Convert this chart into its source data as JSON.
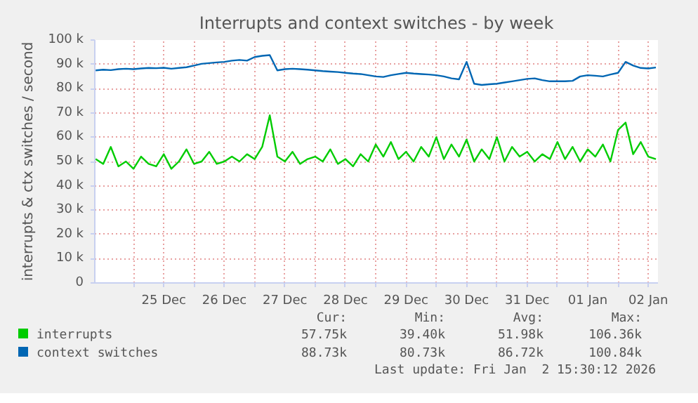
{
  "chart_data": {
    "type": "line",
    "title": "Interrupts and context switches - by week",
    "ylabel": "interrupts & ctx switches / second",
    "x": [
      "2025-12-24T09:00",
      "2025-12-24T12:00",
      "2025-12-24T15:00",
      "2025-12-24T18:00",
      "2025-12-24T21:00",
      "2025-12-25T00:00",
      "2025-12-25T03:00",
      "2025-12-25T06:00",
      "2025-12-25T09:00",
      "2025-12-25T12:00",
      "2025-12-25T15:00",
      "2025-12-25T18:00",
      "2025-12-25T21:00",
      "2025-12-26T00:00",
      "2025-12-26T03:00",
      "2025-12-26T06:00",
      "2025-12-26T09:00",
      "2025-12-26T12:00",
      "2025-12-26T15:00",
      "2025-12-26T18:00",
      "2025-12-26T21:00",
      "2025-12-27T00:00",
      "2025-12-27T03:00",
      "2025-12-27T06:00",
      "2025-12-27T09:00",
      "2025-12-27T12:00",
      "2025-12-27T15:00",
      "2025-12-27T18:00",
      "2025-12-27T21:00",
      "2025-12-28T00:00",
      "2025-12-28T03:00",
      "2025-12-28T06:00",
      "2025-12-28T09:00",
      "2025-12-28T12:00",
      "2025-12-28T15:00",
      "2025-12-28T18:00",
      "2025-12-28T21:00",
      "2025-12-29T00:00",
      "2025-12-29T03:00",
      "2025-12-29T06:00",
      "2025-12-29T09:00",
      "2025-12-29T12:00",
      "2025-12-29T15:00",
      "2025-12-29T18:00",
      "2025-12-29T21:00",
      "2025-12-30T00:00",
      "2025-12-30T03:00",
      "2025-12-30T06:00",
      "2025-12-30T09:00",
      "2025-12-30T12:00",
      "2025-12-30T15:00",
      "2025-12-30T18:00",
      "2025-12-30T21:00",
      "2025-12-31T00:00",
      "2025-12-31T03:00",
      "2025-12-31T06:00",
      "2025-12-31T09:00",
      "2025-12-31T12:00",
      "2025-12-31T15:00",
      "2025-12-31T18:00",
      "2025-12-31T21:00",
      "2026-01-01T00:00",
      "2026-01-01T03:00",
      "2026-01-01T06:00",
      "2026-01-01T09:00",
      "2026-01-01T12:00",
      "2026-01-01T15:00",
      "2026-01-01T18:00",
      "2026-01-01T21:00",
      "2026-01-02T00:00",
      "2026-01-02T03:00",
      "2026-01-02T06:00",
      "2026-01-02T09:00",
      "2026-01-02T12:00",
      "2026-01-02T15:00"
    ],
    "series": [
      {
        "name": "interrupts",
        "color": "#00cc00",
        "values": [
          51000,
          49000,
          56000,
          48000,
          50000,
          47000,
          52000,
          49000,
          48000,
          53000,
          47000,
          50000,
          55000,
          49000,
          50000,
          54000,
          49000,
          50000,
          52000,
          50000,
          53000,
          51000,
          56000,
          69000,
          52000,
          50000,
          54000,
          49000,
          51000,
          52000,
          50000,
          55000,
          49000,
          51000,
          48000,
          53000,
          50000,
          57000,
          52000,
          58000,
          51000,
          54000,
          50000,
          56000,
          52000,
          60000,
          51000,
          57000,
          52000,
          59000,
          50000,
          55000,
          51000,
          60000,
          50000,
          56000,
          52000,
          54000,
          50000,
          53000,
          51000,
          58000,
          51000,
          56000,
          50000,
          55000,
          52000,
          57000,
          50000,
          63000,
          66000,
          53000,
          58000,
          52000,
          51000
        ]
      },
      {
        "name": "context switches",
        "color": "#0066b3",
        "values": [
          87500,
          87800,
          87600,
          88000,
          88200,
          88000,
          88300,
          88500,
          88400,
          88600,
          88200,
          88500,
          88800,
          89500,
          90200,
          90500,
          90800,
          91000,
          91500,
          91800,
          91500,
          93000,
          93500,
          93800,
          87500,
          88000,
          88200,
          88000,
          87800,
          87500,
          87200,
          87000,
          86800,
          86500,
          86200,
          86000,
          85500,
          85000,
          84800,
          85500,
          86000,
          86500,
          86200,
          86000,
          85800,
          85500,
          85000,
          84200,
          83800,
          91000,
          82000,
          81500,
          81800,
          82000,
          82500,
          83000,
          83500,
          84000,
          84200,
          83500,
          83000,
          83000,
          83000,
          83200,
          85000,
          85500,
          85300,
          85000,
          85800,
          86500,
          91000,
          89500,
          88500,
          88300,
          88700
        ]
      }
    ],
    "xlim": [
      "2025-12-24T08:40",
      "2026-01-02T15:50"
    ],
    "xticks": [
      {
        "value": "2025-12-25T00:00",
        "label": null
      },
      {
        "value": "2025-12-25T12:00",
        "label": "25 Dec"
      },
      {
        "value": "2025-12-26T00:00",
        "label": null
      },
      {
        "value": "2025-12-26T12:00",
        "label": "26 Dec"
      },
      {
        "value": "2025-12-27T00:00",
        "label": null
      },
      {
        "value": "2025-12-27T12:00",
        "label": "27 Dec"
      },
      {
        "value": "2025-12-28T00:00",
        "label": null
      },
      {
        "value": "2025-12-28T12:00",
        "label": "28 Dec"
      },
      {
        "value": "2025-12-29T00:00",
        "label": null
      },
      {
        "value": "2025-12-29T12:00",
        "label": "29 Dec"
      },
      {
        "value": "2025-12-30T00:00",
        "label": null
      },
      {
        "value": "2025-12-30T12:00",
        "label": "30 Dec"
      },
      {
        "value": "2025-12-31T00:00",
        "label": null
      },
      {
        "value": "2025-12-31T12:00",
        "label": "31 Dec"
      },
      {
        "value": "2026-01-01T00:00",
        "label": null
      },
      {
        "value": "2026-01-01T12:00",
        "label": "01 Jan"
      },
      {
        "value": "2026-01-02T00:00",
        "label": null
      },
      {
        "value": "2026-01-02T12:00",
        "label": "02 Jan"
      }
    ],
    "ylim": [
      0,
      100000
    ],
    "yticks": [
      0,
      {
        "value": 10000,
        "label": "10 k"
      },
      {
        "value": 20000,
        "label": "20 k"
      },
      {
        "value": 30000,
        "label": "30 k"
      },
      {
        "value": 40000,
        "label": "40 k"
      },
      {
        "value": 50000,
        "label": "50 k"
      },
      {
        "value": 60000,
        "label": "60 k"
      },
      {
        "value": 70000,
        "label": "70 k"
      },
      {
        "value": 80000,
        "label": "80 k"
      },
      {
        "value": 90000,
        "label": "90 k"
      },
      {
        "value": 100000,
        "label": "100 k"
      }
    ],
    "grid": true,
    "legend": "bottom",
    "marker": "none",
    "line_style": "solid",
    "annotations": [
      "Cur:",
      "Min:",
      "Avg:",
      "Max:",
      "57.75k",
      "39.40k",
      "51.98k",
      "106.36k",
      "88.73k",
      "80.73k",
      "86.72k",
      "100.84k",
      "Last update: Fri Jan  2 15:30:12 2026"
    ]
  }
}
